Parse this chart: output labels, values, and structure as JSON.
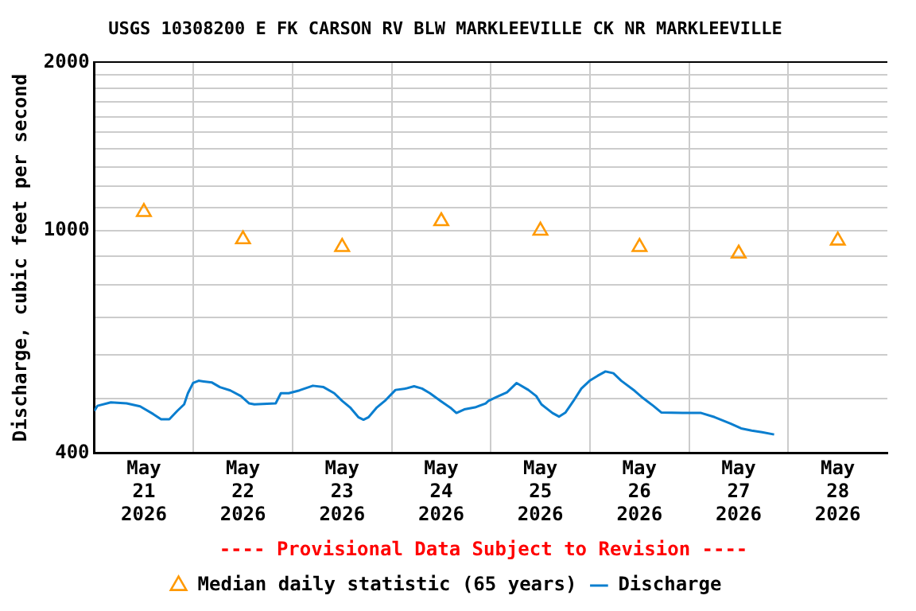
{
  "chart_data": {
    "type": "line",
    "title": "USGS 10308200 E FK CARSON RV BLW MARKLEEVILLE CK NR MARKLEEVILLE",
    "ylabel": "Discharge, cubic feet per second",
    "annotations": [
      "---- Provisional Data Subject to Revision ----"
    ],
    "log": "y",
    "grid": true,
    "legend": "bottom",
    "xlim": [
      "2026-05-21T00:00",
      "2026-05-29T00:00"
    ],
    "xticks": [
      {
        "value": "2026-05-21T12:00",
        "label": "May\n21\n2026"
      },
      {
        "value": "2026-05-22T00:00",
        "label": null
      },
      {
        "value": "2026-05-22T12:00",
        "label": "May\n22\n2026"
      },
      {
        "value": "2026-05-23T00:00",
        "label": null
      },
      {
        "value": "2026-05-23T12:00",
        "label": "May\n23\n2026"
      },
      {
        "value": "2026-05-24T00:00",
        "label": null
      },
      {
        "value": "2026-05-24T12:00",
        "label": "May\n24\n2026"
      },
      {
        "value": "2026-05-25T00:00",
        "label": null
      },
      {
        "value": "2026-05-25T12:00",
        "label": "May\n25\n2026"
      },
      {
        "value": "2026-05-26T00:00",
        "label": null
      },
      {
        "value": "2026-05-26T12:00",
        "label": "May\n26\n2026"
      },
      {
        "value": "2026-05-27T00:00",
        "label": null
      },
      {
        "value": "2026-05-27T12:00",
        "label": "May\n27\n2026"
      },
      {
        "value": "2026-05-28T00:00",
        "label": null
      },
      {
        "value": "2026-05-28T12:00",
        "label": "May\n28\n2026"
      }
    ],
    "ylim": [
      400,
      2000
    ],
    "yticks": [
      400,
      {
        "value": 500,
        "label": null
      },
      {
        "value": 600,
        "label": null
      },
      {
        "value": 700,
        "label": null
      },
      {
        "value": 800,
        "label": null
      },
      {
        "value": 900,
        "label": null
      },
      1000,
      {
        "value": 1100,
        "label": null
      },
      {
        "value": 1200,
        "label": null
      },
      {
        "value": 1300,
        "label": null
      },
      {
        "value": 1400,
        "label": null
      },
      {
        "value": 1500,
        "label": null
      },
      {
        "value": 1600,
        "label": null
      },
      {
        "value": 1700,
        "label": null
      },
      {
        "value": 1800,
        "label": null
      },
      {
        "value": 1900,
        "label": null
      },
      2000
    ],
    "series": [
      {
        "name": "Median daily statistic (65 years)",
        "type": "scatter",
        "marker": "triangle",
        "color": "#ff9900",
        "x": [
          "2026-05-21T12:00",
          "2026-05-22T12:00",
          "2026-05-23T12:00",
          "2026-05-24T12:00",
          "2026-05-25T12:00",
          "2026-05-26T12:00",
          "2026-05-27T12:00",
          "2026-05-28T12:00"
        ],
        "values": [
          1080,
          965,
          935,
          1040,
          1000,
          935,
          910,
          960
        ]
      },
      {
        "name": "Discharge",
        "marker": "none",
        "line_style": "solid",
        "color": "#0a7ecf",
        "x": [
          "2026-05-21T00:00",
          "2026-05-21T00:45",
          "2026-05-21T04:00",
          "2026-05-21T07:50",
          "2026-05-21T11:05",
          "2026-05-21T14:15",
          "2026-05-21T16:10",
          "2026-05-21T18:10",
          "2026-05-21T20:05",
          "2026-05-21T21:45",
          "2026-05-21T22:40",
          "2026-05-21T23:55",
          "2026-05-22T01:15",
          "2026-05-22T04:30",
          "2026-05-22T06:25",
          "2026-05-22T08:55",
          "2026-05-22T11:30",
          "2026-05-22T13:30",
          "2026-05-22T14:45",
          "2026-05-22T19:55",
          "2026-05-22T21:10",
          "2026-05-22T23:05",
          "2026-05-23T01:40",
          "2026-05-23T04:55",
          "2026-05-23T07:30",
          "2026-05-23T10:05",
          "2026-05-23T12:00",
          "2026-05-23T13:55",
          "2026-05-23T15:55",
          "2026-05-23T17:10",
          "2026-05-23T18:25",
          "2026-05-23T20:25",
          "2026-05-23T22:20",
          "2026-05-24T00:55",
          "2026-05-24T03:25",
          "2026-05-24T05:25",
          "2026-05-24T07:20",
          "2026-05-24T09:15",
          "2026-05-24T11:50",
          "2026-05-24T14:25",
          "2026-05-24T15:40",
          "2026-05-24T17:35",
          "2026-05-24T20:10",
          "2026-05-24T22:45",
          "2026-05-24T23:25",
          "2026-05-25T01:20",
          "2026-05-25T03:55",
          "2026-05-25T06:15",
          "2026-05-25T09:05",
          "2026-05-25T11:00",
          "2026-05-25T12:15",
          "2026-05-25T14:55",
          "2026-05-25T16:30",
          "2026-05-25T18:05",
          "2026-05-25T20:00",
          "2026-05-25T21:55",
          "2026-05-25T23:55",
          "2026-05-26T01:50",
          "2026-05-26T03:45",
          "2026-05-26T05:40",
          "2026-05-26T07:35",
          "2026-05-26T10:50",
          "2026-05-26T12:50",
          "2026-05-26T15:20",
          "2026-05-26T17:15",
          "2026-05-26T22:25",
          "2026-05-27T02:55",
          "2026-05-27T06:10",
          "2026-05-27T10:00",
          "2026-05-27T12:35",
          "2026-05-27T15:10",
          "2026-05-27T17:40",
          "2026-05-27T20:35"
        ],
        "values": [
          476,
          486,
          493,
          491,
          485,
          470,
          460,
          460,
          476,
          489,
          512,
          534,
          539,
          535,
          525,
          518,
          506,
          491,
          489,
          491,
          512,
          512,
          518,
          528,
          525,
          512,
          496,
          483,
          464,
          459,
          464,
          483,
          496,
          519,
          522,
          527,
          522,
          512,
          496,
          481,
          472,
          479,
          483,
          491,
          496,
          504,
          514,
          534,
          519,
          506,
          489,
          472,
          465,
          473,
          496,
          522,
          539,
          550,
          560,
          556,
          539,
          517,
          502,
          486,
          473,
          472,
          472,
          464,
          452,
          443,
          439,
          436,
          432
        ]
      }
    ]
  }
}
